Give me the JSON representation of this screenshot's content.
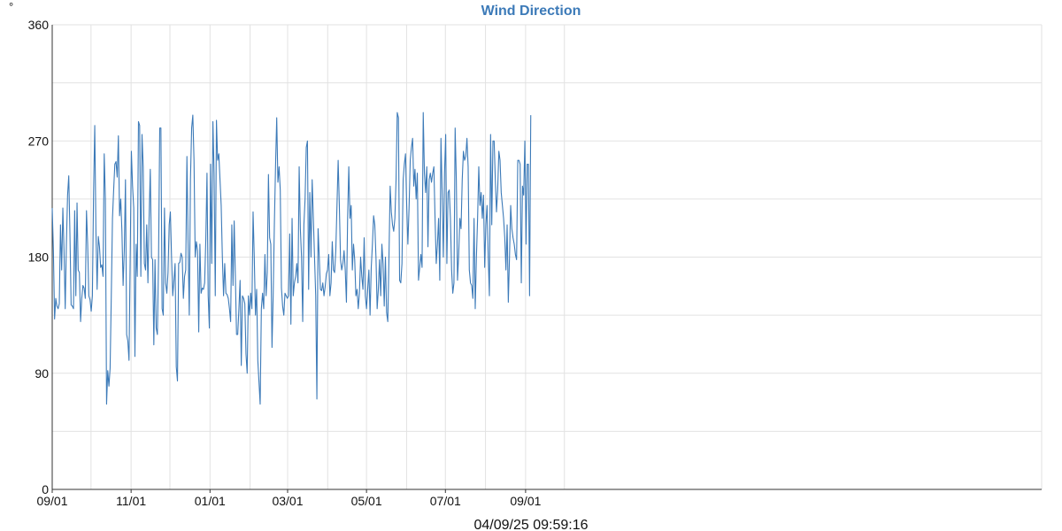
{
  "chart_data": {
    "type": "line",
    "title": "Wind Direction",
    "ylabel": "°",
    "xlabel": "",
    "timestamp": "04/09/25 09:59:16",
    "ylim": [
      0,
      360
    ],
    "yticks": [
      0,
      90,
      180,
      270,
      360
    ],
    "ygrid": [
      0,
      45,
      90,
      135,
      180,
      225,
      270,
      315,
      360
    ],
    "xlim": [
      "2023-09-01",
      "2025-10-05"
    ],
    "xtick_labels": [
      {
        "date": "2023-09-01",
        "label": "09/01"
      },
      {
        "date": "2023-11-01",
        "label": "11/01"
      },
      {
        "date": "2024-01-01",
        "label": "01/01"
      },
      {
        "date": "2024-03-01",
        "label": "03/01"
      },
      {
        "date": "2024-05-01",
        "label": "05/01"
      },
      {
        "date": "2024-07-01",
        "label": "07/01"
      },
      {
        "date": "2024-09-01",
        "label": "09/01"
      }
    ],
    "xgrid_dates": [
      "2023-09-01",
      "2023-10-01",
      "2023-11-01",
      "2023-12-01",
      "2024-01-01",
      "2024-02-01",
      "2024-03-01",
      "2024-04-01",
      "2024-05-01",
      "2024-06-01",
      "2024-07-01",
      "2024-08-01",
      "2024-09-01",
      "2024-10-01"
    ],
    "grid": true,
    "legend": "none",
    "series_color": "#3c7ab8",
    "series": [
      {
        "x_start": "2023-09-01",
        "x_end": "2024-09-05",
        "values": [
          218,
          185,
          132,
          148,
          142,
          140,
          144,
          205,
          170,
          218,
          185,
          140,
          190,
          228,
          243,
          198,
          143,
          142,
          140,
          216,
          150,
          222,
          170,
          168,
          130,
          148,
          158,
          156,
          148,
          216,
          190,
          150,
          147,
          138,
          150,
          230,
          282,
          200,
          155,
          196,
          188,
          172,
          174,
          165,
          260,
          225,
          66,
          92,
          80,
          94,
          150,
          210,
          232,
          252,
          254,
          242,
          274,
          212,
          225,
          200,
          158,
          185,
          240,
          120,
          115,
          100,
          180,
          262,
          235,
          218,
          103,
          190,
          165,
          285,
          282,
          165,
          275,
          250,
          175,
          170,
          205,
          160,
          210,
          248,
          180,
          178,
          112,
          178,
          125,
          120,
          178,
          280,
          280,
          140,
          135,
          218,
          160,
          152,
          168,
          205,
          215,
          180,
          150,
          162,
          175,
          95,
          84,
          175,
          176,
          183,
          180,
          148,
          165,
          170,
          258,
          190,
          135,
          240,
          280,
          290,
          255,
          180,
          192,
          185,
          122,
          190,
          152,
          156,
          155,
          160,
          194,
          245,
          150,
          125,
          252,
          175,
          285,
          245,
          150,
          286,
          255,
          260,
          240,
          220,
          180,
          150,
          175,
          152,
          151,
          148,
          140,
          130,
          205,
          158,
          208,
          165,
          120,
          120,
          140,
          162,
          96,
          150,
          148,
          144,
          105,
          90,
          150,
          135,
          152,
          140,
          215,
          180,
          135,
          155,
          100,
          83,
          66,
          140,
          152,
          140,
          182,
          150,
          168,
          244,
          195,
          190,
          110,
          150,
          205,
          250,
          288,
          238,
          250,
          232,
          156,
          142,
          135,
          152,
          150,
          148,
          150,
          198,
          128,
          210,
          150,
          160,
          165,
          175,
          160,
          250,
          202,
          180,
          130,
          205,
          225,
          265,
          270,
          155,
          230,
          180,
          240,
          210,
          180,
          150,
          70,
          202,
          180,
          155,
          154,
          160,
          150,
          157,
          167,
          170,
          182,
          150,
          160,
          192,
          170,
          168,
          185,
          220,
          255,
          220,
          178,
          170,
          175,
          185,
          170,
          145,
          210,
          250,
          210,
          220,
          170,
          190,
          178,
          150,
          155,
          140,
          152,
          180,
          165,
          155,
          195,
          150,
          140,
          155,
          170,
          135,
          172,
          190,
          212,
          205,
          180,
          140,
          155,
          178,
          150,
          190,
          175,
          142,
          180,
          137,
          130,
          180,
          235,
          215,
          205,
          200,
          210,
          240,
          292,
          288,
          162,
          160,
          175,
          240,
          252,
          260,
          220,
          190,
          218,
          255,
          265,
          272,
          235,
          248,
          225,
          245,
          162,
          172,
          182,
          172,
          292,
          245,
          230,
          250,
          188,
          240,
          245,
          238,
          245,
          250,
          210,
          175,
          190,
          210,
          162,
          272,
          230,
          180,
          245,
          275,
          175,
          230,
          232,
          210,
          170,
          152,
          160,
          280,
          240,
          162,
          182,
          210,
          202,
          240,
          262,
          255,
          258,
          272,
          250,
          170,
          160,
          158,
          148,
          210,
          140,
          180,
          210,
          250,
          220,
          230,
          210,
          228,
          172,
          205,
          220,
          180,
          150,
          275,
          205,
          270,
          270,
          240,
          215,
          232,
          262,
          255,
          230,
          220,
          210,
          195,
          170,
          205,
          145,
          180,
          220,
          202,
          195,
          190,
          182,
          178,
          255,
          255,
          252,
          160,
          235,
          228,
          270,
          190,
          252,
          252,
          150,
          290
        ]
      }
    ]
  }
}
